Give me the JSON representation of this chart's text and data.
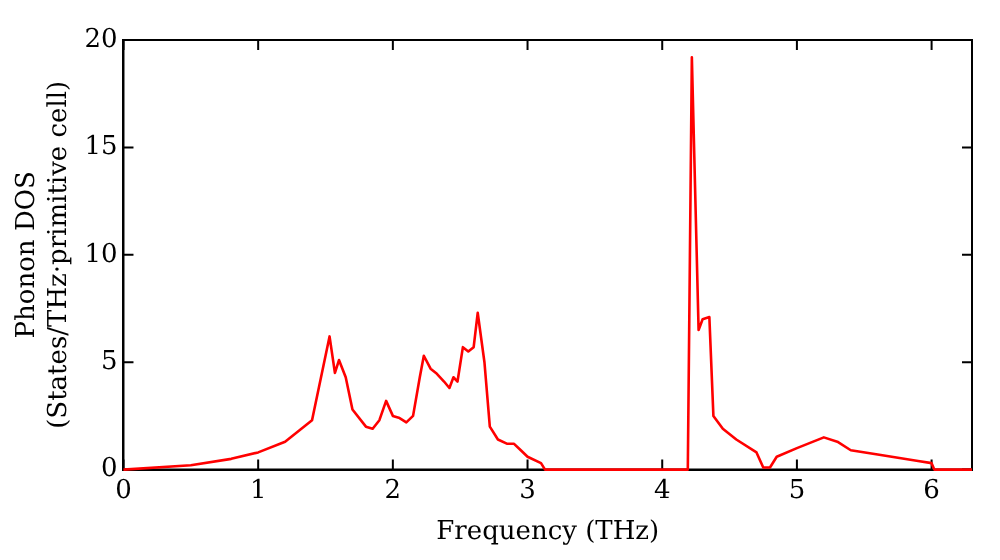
{
  "chart_data": {
    "type": "line",
    "xlabel": "Frequency (THz)",
    "ylabel": "Phonon DOS\n(States/THz·primitive cell)",
    "xlim": [
      0,
      6.3
    ],
    "xticks": [
      0,
      1,
      2,
      3,
      4,
      5,
      6
    ],
    "ylim": [
      0,
      20
    ],
    "yticks": [
      0,
      5,
      10,
      15,
      20
    ],
    "grid": false,
    "legend": false,
    "marker": "none",
    "line_style": "solid",
    "series": [
      {
        "color": "#ff0000",
        "x": [
          0,
          0.5,
          0.8,
          1.0,
          1.2,
          1.4,
          1.53,
          1.57,
          1.6,
          1.65,
          1.7,
          1.8,
          1.85,
          1.9,
          1.95,
          2.0,
          2.05,
          2.1,
          2.15,
          2.2,
          2.23,
          2.28,
          2.32,
          2.38,
          2.42,
          2.45,
          2.48,
          2.52,
          2.56,
          2.6,
          2.63,
          2.68,
          2.72,
          2.78,
          2.85,
          2.9,
          2.95,
          3.0,
          3.1,
          3.13,
          4.0,
          4.19,
          4.22,
          4.27,
          4.3,
          4.35,
          4.38,
          4.45,
          4.55,
          4.7,
          4.75,
          4.8,
          4.85,
          5.0,
          5.2,
          5.3,
          5.4,
          5.6,
          5.9,
          6.0,
          6.02,
          6.3
        ],
        "values": [
          0,
          0.2,
          0.5,
          0.8,
          1.3,
          2.3,
          6.2,
          4.5,
          5.1,
          4.3,
          2.8,
          2.0,
          1.9,
          2.3,
          3.2,
          2.5,
          2.4,
          2.2,
          2.5,
          4.3,
          5.3,
          4.7,
          4.5,
          4.1,
          3.8,
          4.3,
          4.1,
          5.7,
          5.5,
          5.7,
          7.3,
          5.0,
          2.0,
          1.4,
          1.2,
          1.2,
          0.9,
          0.6,
          0.3,
          0,
          0,
          0,
          19.2,
          6.5,
          7.0,
          7.1,
          2.5,
          1.9,
          1.4,
          0.8,
          0.1,
          0.1,
          0.6,
          1.0,
          1.5,
          1.3,
          0.9,
          0.7,
          0.4,
          0.3,
          0,
          0
        ]
      }
    ]
  }
}
